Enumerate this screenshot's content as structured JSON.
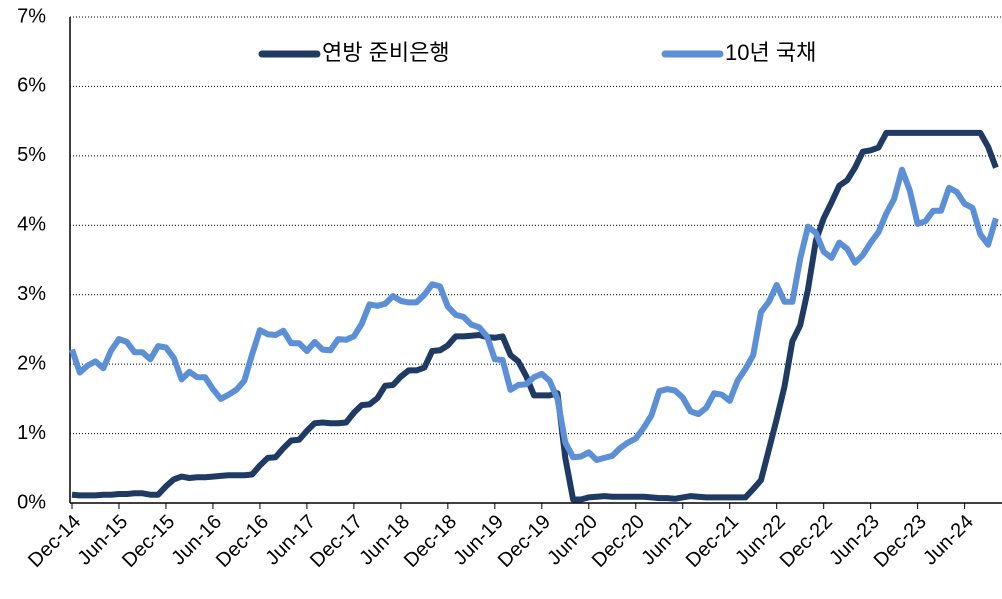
{
  "chart_data": {
    "type": "line",
    "categories": [
      "Dec-14",
      null,
      null,
      null,
      null,
      null,
      "Jun-15",
      null,
      null,
      null,
      null,
      null,
      "Dec-15",
      null,
      null,
      null,
      null,
      null,
      "Jun-16",
      null,
      null,
      null,
      null,
      null,
      "Dec-16",
      null,
      null,
      null,
      null,
      null,
      "Jun-17",
      null,
      null,
      null,
      null,
      null,
      "Dec-17",
      null,
      null,
      null,
      null,
      null,
      "Jun-18",
      null,
      null,
      null,
      null,
      null,
      "Dec-18",
      null,
      null,
      null,
      null,
      null,
      "Jun-19",
      null,
      null,
      null,
      null,
      null,
      "Dec-19",
      null,
      null,
      null,
      null,
      null,
      "Jun-20",
      null,
      null,
      null,
      null,
      null,
      "Dec-20",
      null,
      null,
      null,
      null,
      null,
      "Jun-21",
      null,
      null,
      null,
      null,
      null,
      "Dec-21",
      null,
      null,
      null,
      null,
      null,
      "Jun-22",
      null,
      null,
      null,
      null,
      null,
      "Dec-22",
      null,
      null,
      null,
      null,
      null,
      "Jun-23",
      null,
      null,
      null,
      null,
      null,
      "Dec-23",
      null,
      null,
      null,
      null,
      null,
      "Jun-24",
      null,
      null,
      null,
      null
    ],
    "series": [
      {
        "name": "연방 준비은행",
        "color": "#1f3b64",
        "values": [
          0.12,
          0.11,
          0.11,
          0.11,
          0.12,
          0.12,
          0.13,
          0.13,
          0.14,
          0.14,
          0.12,
          0.12,
          0.24,
          0.34,
          0.38,
          0.36,
          0.37,
          0.37,
          0.38,
          0.39,
          0.4,
          0.4,
          0.4,
          0.41,
          0.54,
          0.65,
          0.66,
          0.79,
          0.9,
          0.91,
          1.04,
          1.15,
          1.16,
          1.15,
          1.15,
          1.16,
          1.3,
          1.41,
          1.42,
          1.51,
          1.69,
          1.7,
          1.82,
          1.91,
          1.91,
          1.95,
          2.19,
          2.2,
          2.27,
          2.4,
          2.4,
          2.41,
          2.42,
          2.39,
          2.38,
          2.4,
          2.13,
          2.04,
          1.83,
          1.55,
          1.55,
          1.55,
          1.58,
          0.65,
          0.05,
          0.05,
          0.08,
          0.09,
          0.1,
          0.09,
          0.09,
          0.09,
          0.09,
          0.09,
          0.08,
          0.07,
          0.07,
          0.06,
          0.08,
          0.1,
          0.09,
          0.08,
          0.08,
          0.08,
          0.08,
          0.08,
          0.08,
          0.2,
          0.33,
          0.77,
          1.21,
          1.68,
          2.33,
          2.56,
          3.08,
          3.78,
          4.1,
          4.33,
          4.57,
          4.65,
          4.83,
          5.06,
          5.08,
          5.12,
          5.33,
          5.33,
          5.33,
          5.33,
          5.33,
          5.33,
          5.33,
          5.33,
          5.33,
          5.33,
          5.33,
          5.33,
          5.33,
          5.13,
          4.83
        ]
      },
      {
        "name": "10년 국채",
        "color": "#5b8fd6",
        "values": [
          2.21,
          1.88,
          1.98,
          2.04,
          1.94,
          2.2,
          2.36,
          2.32,
          2.17,
          2.17,
          2.07,
          2.26,
          2.24,
          2.09,
          1.78,
          1.89,
          1.81,
          1.81,
          1.64,
          1.5,
          1.56,
          1.63,
          1.76,
          2.14,
          2.49,
          2.43,
          2.42,
          2.48,
          2.3,
          2.3,
          2.19,
          2.32,
          2.21,
          2.2,
          2.36,
          2.35,
          2.4,
          2.58,
          2.86,
          2.84,
          2.87,
          2.98,
          2.91,
          2.89,
          2.89,
          3.0,
          3.15,
          3.12,
          2.83,
          2.71,
          2.68,
          2.57,
          2.53,
          2.4,
          2.07,
          2.06,
          1.63,
          1.7,
          1.71,
          1.81,
          1.86,
          1.76,
          1.5,
          0.87,
          0.66,
          0.67,
          0.73,
          0.62,
          0.65,
          0.68,
          0.79,
          0.87,
          0.93,
          1.08,
          1.26,
          1.61,
          1.64,
          1.62,
          1.52,
          1.32,
          1.28,
          1.37,
          1.58,
          1.56,
          1.47,
          1.76,
          1.93,
          2.13,
          2.75,
          2.9,
          3.14,
          2.9,
          2.9,
          3.52,
          3.98,
          3.89,
          3.62,
          3.53,
          3.75,
          3.66,
          3.46,
          3.57,
          3.75,
          3.9,
          4.17,
          4.38,
          4.8,
          4.5,
          4.02,
          4.06,
          4.21,
          4.21,
          4.54,
          4.48,
          4.31,
          4.25,
          3.87,
          3.72,
          4.1
        ]
      }
    ],
    "ylim": [
      0,
      7
    ],
    "yticks": [
      {
        "value": 0,
        "label": "0%"
      },
      {
        "value": 1,
        "label": "1%"
      },
      {
        "value": 2,
        "label": "2%"
      },
      {
        "value": 3,
        "label": "3%"
      },
      {
        "value": 4,
        "label": "4%"
      },
      {
        "value": 5,
        "label": "5%"
      },
      {
        "value": 6,
        "label": "6%"
      },
      {
        "value": 7,
        "label": "7%"
      }
    ],
    "grid": true,
    "legend": "top"
  }
}
